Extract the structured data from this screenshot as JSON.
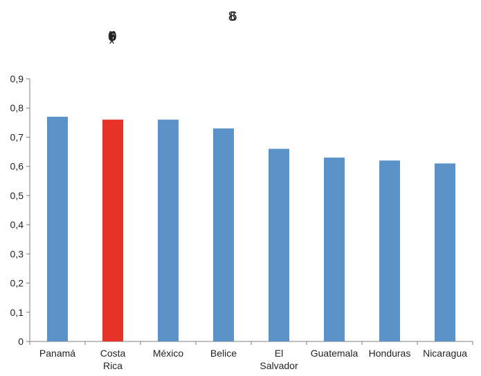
{
  "chart_data": {
    "type": "bar",
    "title_top": "6.8",
    "title_second": "0.65(3)",
    "categories": [
      "Panamá",
      "Costa Rica",
      "México",
      "Belice",
      "El Salvador",
      "Guatemala",
      "Honduras",
      "Nicaragua"
    ],
    "category_lines": [
      [
        "Panamá"
      ],
      [
        "Costa",
        "Rica"
      ],
      [
        "México"
      ],
      [
        "Belice"
      ],
      [
        "El",
        "Salvador"
      ],
      [
        "Guatemala"
      ],
      [
        "Honduras"
      ],
      [
        "Nicaragua"
      ]
    ],
    "values": [
      0.77,
      0.76,
      0.76,
      0.73,
      0.66,
      0.63,
      0.62,
      0.61
    ],
    "highlight_index": 1,
    "colors": {
      "bar": "#5b93c9",
      "highlight": "#e63227",
      "axis": "#7f7f7f",
      "grid": "#ffffff"
    },
    "ylim": [
      0,
      0.9
    ],
    "yticks": [
      "0",
      "0,1",
      "0,2",
      "0,3",
      "0,4",
      "0,5",
      "0,6",
      "0,7",
      "0,8",
      "0,9"
    ],
    "xlabel": "",
    "ylabel": "",
    "grid": false,
    "legend": "none"
  }
}
